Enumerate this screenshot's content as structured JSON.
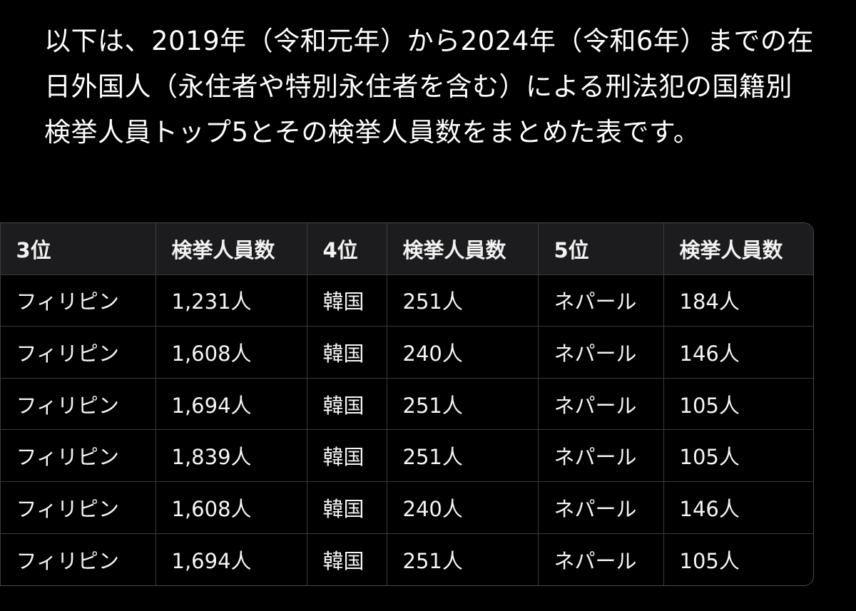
{
  "intro": {
    "text": "以下は、2019年（令和元年）から2024年（令和6年）までの在日外国人（永住者や特別永住者を含む）による刑法犯の国籍別検挙人員トップ5とその検挙人員数をまとめた表です。"
  },
  "table": {
    "headers": [
      "3位",
      "検挙人員数",
      "4位",
      "検挙人員数",
      "5位",
      "検挙人員数"
    ],
    "rows": [
      [
        "フィリピン",
        "1,231人",
        "韓国",
        "251人",
        "ネパール",
        "184人"
      ],
      [
        "フィリピン",
        "1,608人",
        "韓国",
        "240人",
        "ネパール",
        "146人"
      ],
      [
        "フィリピン",
        "1,694人",
        "韓国",
        "251人",
        "ネパール",
        "105人"
      ],
      [
        "フィリピン",
        "1,839人",
        "韓国",
        "251人",
        "ネパール",
        "105人"
      ],
      [
        "フィリピン",
        "1,608人",
        "韓国",
        "240人",
        "ネパール",
        "146人"
      ],
      [
        "フィリピン",
        "1,694人",
        "韓国",
        "251人",
        "ネパール",
        "105人"
      ]
    ]
  },
  "colors": {
    "background": "#000000",
    "header_background": "#1c1c1e",
    "border": "#3a3a3e",
    "text": "#ffffff"
  }
}
